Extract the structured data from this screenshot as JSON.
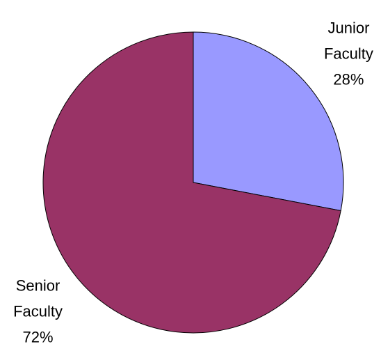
{
  "chart_data": {
    "type": "pie",
    "categories": [
      "Junior Faculty",
      "Senior Faculty"
    ],
    "values": [
      28,
      72
    ],
    "value_labels": [
      "28%",
      "72%"
    ],
    "colors": [
      "#9999ff",
      "#993366"
    ]
  }
}
